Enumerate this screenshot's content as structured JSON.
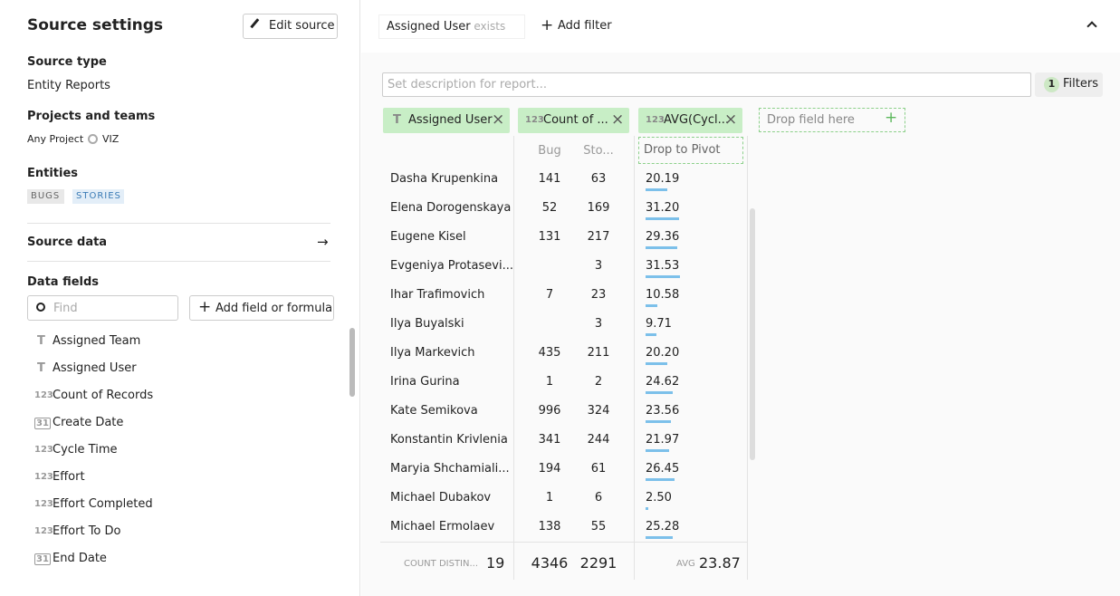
{
  "sidebar": {
    "title": "Source settings",
    "edit_button": "Edit source",
    "source_type_label": "Source type",
    "source_type": "Entity Reports",
    "projects_label": "Projects and teams",
    "project": "Any Project",
    "team": "VIZ",
    "entities_label": "Entities",
    "entities": [
      "BUGS",
      "STORIES"
    ],
    "source_data": "Source data",
    "data_fields_label": "Data fields",
    "find_placeholder": "Find",
    "add_field_button": "Add field or formula",
    "fields": [
      {
        "icon": "T",
        "name": "Assigned Team"
      },
      {
        "icon": "T",
        "name": "Assigned User"
      },
      {
        "icon": "123",
        "name": "Count of Records"
      },
      {
        "icon": "31",
        "name": "Create Date"
      },
      {
        "icon": "123",
        "name": "Cycle Time"
      },
      {
        "icon": "123",
        "name": "Effort"
      },
      {
        "icon": "123",
        "name": "Effort Completed"
      },
      {
        "icon": "123",
        "name": "Effort To Do"
      },
      {
        "icon": "31",
        "name": "End Date"
      }
    ]
  },
  "toolbar": {
    "filter_field": "Assigned User",
    "filter_op": "exists",
    "add_filter": "Add filter"
  },
  "report": {
    "description_placeholder": "Set description for report...",
    "filters_count": "1",
    "filters_label": "Filters",
    "pills": [
      {
        "icon": "T",
        "label": "Assigned User"
      },
      {
        "icon": "123",
        "label": "Count of ..."
      },
      {
        "icon": "123",
        "label": "AVG(Cycl..."
      }
    ],
    "drop_field": "Drop field here",
    "drop_pivot": "Drop to Pivot",
    "columns": [
      "Bug",
      "Sto..."
    ],
    "rows": [
      [
        "Dasha Krupenkina",
        "141",
        "63",
        "20.19"
      ],
      [
        "Elena Dorogenskaya",
        "52",
        "169",
        "31.20"
      ],
      [
        "Eugene Kisel",
        "131",
        "217",
        "29.36"
      ],
      [
        "Evgeniya Protasevi...",
        null,
        "3",
        "31.53"
      ],
      [
        "Ihar Trafimovich",
        "7",
        "23",
        "10.58"
      ],
      [
        "Ilya Buyalski",
        null,
        "3",
        "9.71"
      ],
      [
        "Ilya Markevich",
        "435",
        "211",
        "20.20"
      ],
      [
        "Irina Gurina",
        "1",
        "2",
        "24.62"
      ],
      [
        "Kate Semikova",
        "996",
        "324",
        "23.56"
      ],
      [
        "Konstantin Krivlenia",
        "341",
        "244",
        "21.97"
      ],
      [
        "Maryia Shchamiali...",
        "194",
        "61",
        "26.45"
      ],
      [
        "Michael Dubakov",
        "1",
        "6",
        "2.50"
      ],
      [
        "Michael Ermolaev",
        "138",
        "55",
        "25.28"
      ]
    ],
    "totals": {
      "label": "COUNT DISTIN...",
      "count": "19",
      "bug": "4346",
      "story": "2291",
      "avg_label": "AVG",
      "avg": "23.87"
    }
  }
}
